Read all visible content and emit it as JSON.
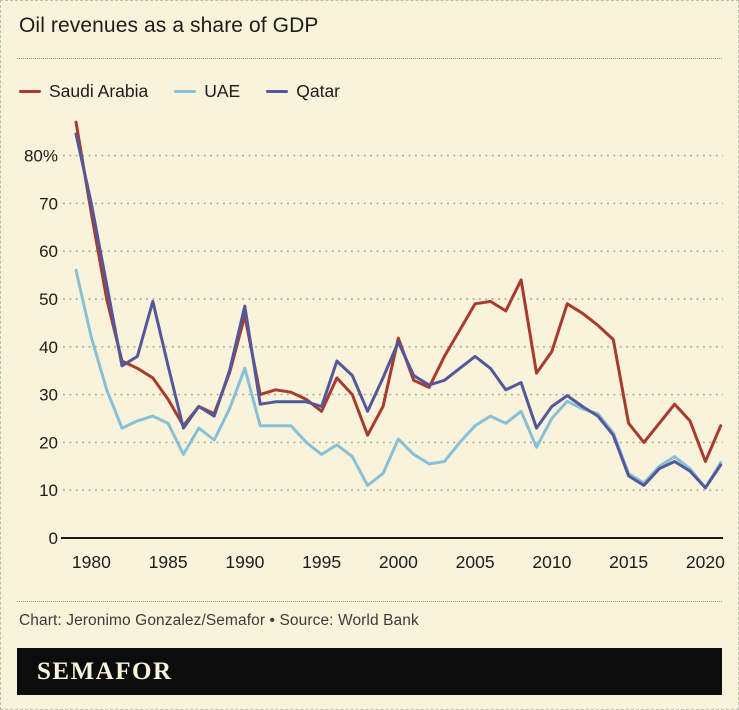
{
  "page": {
    "title": "Oil revenues as a share of GDP",
    "credit": "Chart: Jeronimo Gonzalez/Semafor • Source: World Bank",
    "brand": "SEMAFOR",
    "background": "#f8f3da"
  },
  "legend": [
    {
      "label": "Saudi Arabia",
      "color": "#a93a2e"
    },
    {
      "label": "UAE",
      "color": "#88c0d8"
    },
    {
      "label": "Qatar",
      "color": "#53589c"
    }
  ],
  "chart_data": {
    "type": "line",
    "title": "Oil revenues as a share of GDP",
    "xlabel": "",
    "ylabel": "",
    "x": [
      1979,
      1980,
      1981,
      1982,
      1983,
      1984,
      1985,
      1986,
      1987,
      1988,
      1989,
      1990,
      1991,
      1992,
      1993,
      1994,
      1995,
      1996,
      1997,
      1998,
      1999,
      2000,
      2001,
      2002,
      2003,
      2004,
      2005,
      2006,
      2007,
      2008,
      2009,
      2010,
      2011,
      2012,
      2013,
      2014,
      2015,
      2016,
      2017,
      2018,
      2019,
      2020,
      2021
    ],
    "series": [
      {
        "name": "Saudi Arabia",
        "color": "#a93a2e",
        "values": [
          87,
          68,
          50,
          37,
          35.5,
          33.5,
          29,
          23.5,
          27.5,
          26,
          34.5,
          46.5,
          30,
          31,
          30.5,
          29,
          26.5,
          33.5,
          30,
          21.5,
          27.5,
          41.8,
          33,
          31.5,
          38,
          43.5,
          49,
          49.5,
          47.5,
          54,
          34.5,
          39,
          49,
          47,
          44.5,
          41.5,
          24,
          20,
          24,
          28,
          24.5,
          16,
          23.5
        ]
      },
      {
        "name": "UAE",
        "color": "#88c0d8",
        "values": [
          56,
          42,
          31,
          23,
          24.5,
          25.5,
          24,
          17.5,
          23,
          20.5,
          27,
          35.5,
          23.5,
          23.5,
          23.5,
          20,
          17.5,
          19.5,
          17,
          11,
          13.5,
          20.7,
          17.5,
          15.5,
          16,
          20,
          23.5,
          25.5,
          24,
          26.5,
          19,
          25,
          28.6,
          27,
          26,
          22,
          13.5,
          11.5,
          15,
          17,
          14.5,
          10.5,
          15.8
        ]
      },
      {
        "name": "Qatar",
        "color": "#53589c",
        "values": [
          84.5,
          70,
          53,
          36,
          38,
          49.5,
          36,
          23,
          27.5,
          25.5,
          35,
          48.5,
          28,
          28.5,
          28.5,
          28.5,
          27.5,
          37,
          34,
          26.5,
          33.5,
          41,
          34,
          32,
          33,
          35.5,
          38,
          35.5,
          31,
          32.5,
          23,
          27.5,
          29.8,
          27.5,
          25.5,
          21.5,
          13,
          11,
          14.5,
          16,
          14,
          10.5,
          15.3
        ]
      }
    ],
    "xticks": [
      1980,
      1985,
      1990,
      1995,
      2000,
      2005,
      2010,
      2015,
      2020
    ],
    "yticks": [
      0,
      10,
      20,
      30,
      40,
      50,
      60,
      70,
      80
    ],
    "ytick_labels": [
      "0",
      "10",
      "20",
      "30",
      "40",
      "50",
      "60",
      "70",
      "80%"
    ],
    "ylim": [
      0,
      90
    ],
    "xlim": [
      1979,
      2021
    ],
    "grid": "horizontal-dotted",
    "legend_position": "top-left"
  }
}
